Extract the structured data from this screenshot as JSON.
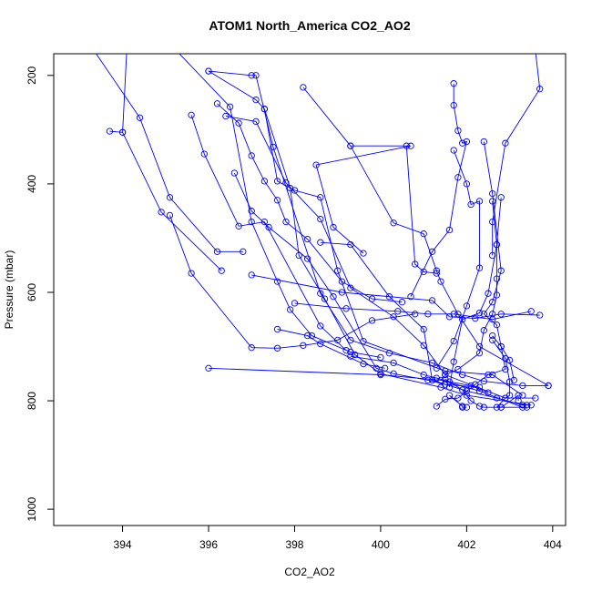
{
  "chart_data": {
    "type": "line",
    "title": "ATOM1 North_America CO2_AO2",
    "xlabel": "CO2_AO2",
    "ylabel": "Pressure (mbar)",
    "xlim": [
      392.4,
      404.3
    ],
    "ylim": [
      1030,
      160
    ],
    "y_reversed": true,
    "xticks": [
      394,
      396,
      398,
      400,
      402,
      404
    ],
    "yticks": [
      200,
      400,
      600,
      800,
      1000
    ],
    "marker": "open-circle",
    "color": "#0000ff",
    "series": [
      {
        "x": [
          393.3,
          394.4,
          395.1,
          396.2,
          396.8
        ],
        "y": [
          150,
          278,
          425,
          525,
          525
        ]
      },
      {
        "x": [
          393.7,
          394.0,
          394.1
        ],
        "y": [
          303,
          305,
          150
        ]
      },
      {
        "x": [
          394.0,
          394.9,
          396.3
        ],
        "y": [
          305,
          452,
          560
        ]
      },
      {
        "x": [
          395.2,
          396.5,
          397.0,
          397.6,
          397.9,
          398.4,
          399.3,
          400.0
        ],
        "y": [
          150,
          258,
          470,
          580,
          632,
          680,
          710,
          720
        ]
      },
      {
        "x": [
          395.6,
          395.9,
          396.7,
          397.3,
          398.6,
          399.2
        ],
        "y": [
          273,
          345,
          478,
          470,
          662,
          707
        ]
      },
      {
        "x": [
          395.1,
          395.6,
          397.0,
          397.6,
          398.2,
          399.0,
          399.8,
          400.8
        ],
        "y": [
          458,
          565,
          702,
          703,
          698,
          688,
          652,
          640
        ]
      },
      {
        "x": [
          396.0,
          397.0,
          397.1,
          397.5,
          398.6,
          399.3,
          400.2,
          401.2,
          401.9,
          402.4,
          403.3,
          403.9
        ],
        "y": [
          192,
          200,
          200,
          332,
          602,
          688,
          712,
          730,
          752,
          764,
          772,
          772
        ]
      },
      {
        "x": [
          396.0,
          397.1,
          397.3,
          397.9,
          398.1,
          398.7,
          399.4,
          400.0,
          401.4,
          402.0,
          403.5
        ],
        "y": [
          192,
          245,
          262,
          408,
          532,
          612,
          715,
          750,
          775,
          790,
          808
        ]
      },
      {
        "x": [
          396.4,
          397.1,
          397.8,
          398.6,
          399.3,
          400.3,
          401.0,
          401.5,
          402.9,
          403.6
        ],
        "y": [
          275,
          285,
          398,
          465,
          592,
          645,
          698,
          752,
          795,
          795
        ]
      },
      {
        "x": [
          396.6,
          397.0,
          397.4,
          398.3,
          398.9,
          399.9,
          400.3,
          401.1,
          401.5,
          402.3
        ],
        "y": [
          380,
          450,
          480,
          538,
          608,
          740,
          750,
          762,
          770,
          775
        ]
      },
      {
        "x": [
          396.0,
          400.0,
          401.4,
          402.3,
          403.3
        ],
        "y": [
          740,
          752,
          762,
          782,
          812
        ]
      },
      {
        "x": [
          396.2,
          396.7,
          397.0,
          397.3,
          397.6,
          397.8,
          398.3,
          399.1,
          399.8,
          400.5
        ],
        "y": [
          252,
          288,
          348,
          395,
          430,
          470,
          502,
          580,
          612,
          618
        ]
      },
      {
        "x": [
          397.3,
          397.6,
          398.0,
          398.6,
          399.0,
          399.6,
          401.5,
          402.6,
          403.3
        ],
        "y": [
          262,
          395,
          412,
          425,
          560,
          690,
          745,
          752,
          790
        ]
      },
      {
        "x": [
          397.6,
          398.3,
          398.6,
          399.6,
          400.1
        ],
        "y": [
          668,
          680,
          695,
          732,
          740
        ]
      },
      {
        "x": [
          398.2,
          399.3,
          400.3,
          401.0,
          401.3,
          401.4,
          401.8,
          402.3,
          403.9
        ],
        "y": [
          222,
          330,
          472,
          492,
          560,
          580,
          640,
          700,
          772
        ]
      },
      {
        "x": [
          399.3,
          400.7,
          398.5,
          398.9,
          399.6
        ],
        "y": [
          330,
          330,
          365,
          480,
          528
        ]
      },
      {
        "x": [
          398.6,
          399.3,
          400.2,
          401.0,
          401.2,
          402.0,
          402.7,
          403.3,
          403.4
        ],
        "y": [
          508,
          512,
          608,
          668,
          762,
          782,
          795,
          808,
          808
        ]
      },
      {
        "x": [
          398.0,
          399.2,
          400.4,
          401.1,
          401.7,
          402.6,
          403.5
        ],
        "y": [
          620,
          630,
          635,
          640,
          640,
          650,
          635
        ]
      },
      {
        "x": [
          397.0,
          399.1,
          401.2,
          401.6,
          402.2,
          402.8,
          403.7
        ],
        "y": [
          568,
          600,
          615,
          645,
          648,
          640,
          642
        ]
      },
      {
        "x": [
          400.6,
          400.8,
          401.0,
          401.3
        ],
        "y": [
          330,
          548,
          562,
          565
        ]
      },
      {
        "x": [
          401.7,
          401.7,
          401.8,
          401.9,
          402.0,
          401.8,
          401.6,
          401.2,
          400.7
        ],
        "y": [
          215,
          255,
          302,
          325,
          322,
          388,
          485,
          525,
          608
        ]
      },
      {
        "x": [
          401.7,
          402.0,
          402.1,
          402.3,
          402.3,
          402.0,
          401.7,
          401.3
        ],
        "y": [
          338,
          400,
          438,
          432,
          555,
          625,
          690,
          740
        ]
      },
      {
        "x": [
          402.4,
          402.6,
          402.8,
          402.6,
          402.4,
          402.7,
          402.8,
          403.0,
          403.1
        ],
        "y": [
          322,
          418,
          560,
          618,
          640,
          660,
          700,
          725,
          762
        ]
      },
      {
        "x": [
          402.6,
          402.7,
          402.7,
          402.7,
          402.6,
          402.4,
          402.3,
          401.8,
          401.5
        ],
        "y": [
          432,
          512,
          575,
          605,
          640,
          670,
          712,
          742,
          752
        ]
      },
      {
        "x": [
          402.8,
          402.7,
          402.5,
          402.3,
          401.9,
          401.7,
          401.6
        ],
        "y": [
          425,
          512,
          602,
          638,
          650,
          728,
          775
        ]
      },
      {
        "x": [
          403.6,
          403.7,
          402.9,
          402.6,
          402.6
        ],
        "y": [
          155,
          225,
          325,
          470,
          532
        ]
      },
      {
        "x": [
          402.6,
          402.8,
          402.9,
          402.5,
          402.2,
          401.8,
          401.5,
          401.3
        ],
        "y": [
          680,
          700,
          742,
          752,
          770,
          795,
          797,
          810
        ]
      },
      {
        "x": [
          402.6,
          402.9,
          403.0,
          403.0,
          402.9,
          402.7,
          402.8,
          403.2,
          403.2
        ],
        "y": [
          688,
          722,
          765,
          790,
          795,
          812,
          812,
          790,
          800
        ]
      },
      {
        "x": [
          401.5,
          401.9,
          402.1,
          402.3,
          402.4,
          402.8,
          403.4
        ],
        "y": [
          760,
          780,
          800,
          810,
          812,
          812,
          812
        ]
      },
      {
        "x": [
          401.6,
          401.9,
          401.9,
          402.0
        ],
        "y": [
          790,
          810,
          812,
          812
        ]
      },
      {
        "x": [
          399.3,
          400.3,
          401.0,
          401.3,
          401.6,
          402.1,
          402.5
        ],
        "y": [
          718,
          730,
          752,
          758,
          765,
          772,
          785
        ]
      }
    ]
  }
}
